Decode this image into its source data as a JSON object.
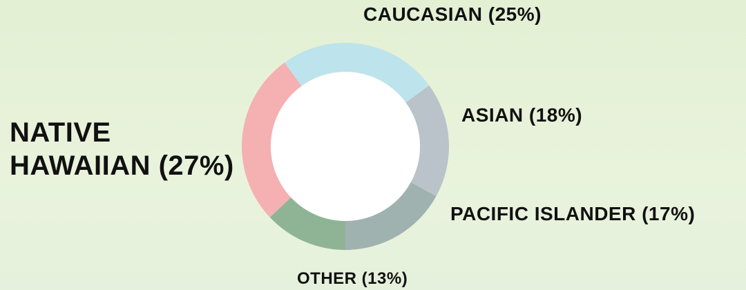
{
  "chart_data": {
    "type": "donut",
    "value_labels": [
      "CAUCASIAN (25%)",
      "ASIAN (18%)",
      "PACIFIC ISLANDER (17%)",
      "OTHER (13%)",
      "NATIVE HAWAIIAN (27%)"
    ],
    "values": [
      25,
      18,
      17,
      13,
      27
    ],
    "colors": [
      "#bde3ec",
      "#b9c3c9",
      "#9fb2b0",
      "#8fb495",
      "#f5b0b2"
    ]
  }
}
